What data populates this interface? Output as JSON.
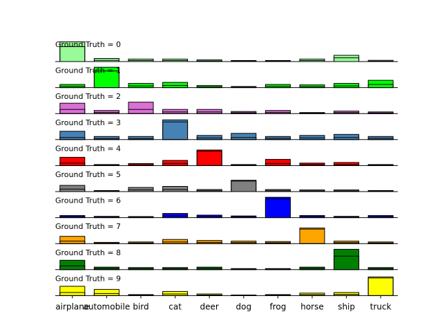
{
  "chart_data": {
    "type": "bar",
    "layout": "stacked-rows",
    "categories": [
      "airplane",
      "automobile",
      "bird",
      "cat",
      "deer",
      "dog",
      "frog",
      "horse",
      "ship",
      "truck"
    ],
    "ylim": [
      0,
      1
    ],
    "grid": false,
    "rows": [
      {
        "label": "Ground Truth = 0",
        "color": "#98fb98",
        "values": [
          0.95,
          0.15,
          0.12,
          0.12,
          0.08,
          0.05,
          0.05,
          0.12,
          0.3,
          0.06
        ],
        "inner_values": [
          0.72,
          0.06,
          0.05,
          0.05,
          0.03,
          0.02,
          0.02,
          0.05,
          0.18,
          0.02
        ]
      },
      {
        "label": "Ground Truth = 1",
        "color": "#00ff00",
        "values": [
          0.15,
          0.98,
          0.2,
          0.25,
          0.1,
          0.05,
          0.15,
          0.13,
          0.2,
          0.35
        ],
        "inner_values": [
          0.06,
          0.8,
          0.08,
          0.1,
          0.04,
          0.02,
          0.06,
          0.05,
          0.08,
          0.15
        ]
      },
      {
        "label": "Ground Truth = 2",
        "color": "#da70d6",
        "values": [
          0.5,
          0.15,
          0.55,
          0.2,
          0.2,
          0.1,
          0.15,
          0.05,
          0.12,
          0.08
        ],
        "inner_values": [
          0.2,
          0.06,
          0.2,
          0.08,
          0.08,
          0.04,
          0.06,
          0.02,
          0.05,
          0.03
        ]
      },
      {
        "label": "Ground Truth = 3",
        "color": "#4682b4",
        "values": [
          0.4,
          0.15,
          0.15,
          0.95,
          0.2,
          0.3,
          0.15,
          0.2,
          0.25,
          0.15
        ],
        "inner_values": [
          0.1,
          0.05,
          0.05,
          0.85,
          0.08,
          0.1,
          0.06,
          0.08,
          0.1,
          0.06
        ]
      },
      {
        "label": "Ground Truth = 4",
        "color": "#ff0000",
        "values": [
          0.4,
          0.05,
          0.1,
          0.25,
          0.75,
          0.05,
          0.3,
          0.12,
          0.15,
          0.05
        ],
        "inner_values": [
          0.12,
          0.02,
          0.04,
          0.1,
          0.7,
          0.02,
          0.1,
          0.05,
          0.05,
          0.02
        ]
      },
      {
        "label": "Ground Truth = 5",
        "color": "#808080",
        "values": [
          0.3,
          0.05,
          0.2,
          0.25,
          0.1,
          0.55,
          0.1,
          0.08,
          0.08,
          0.05
        ],
        "inner_values": [
          0.12,
          0.02,
          0.08,
          0.1,
          0.04,
          0.5,
          0.04,
          0.03,
          0.03,
          0.02
        ]
      },
      {
        "label": "Ground Truth = 6",
        "color": "#0000ff",
        "values": [
          0.1,
          0.06,
          0.05,
          0.2,
          0.12,
          0.08,
          0.98,
          0.1,
          0.06,
          0.1
        ],
        "inner_values": [
          0.04,
          0.02,
          0.02,
          0.08,
          0.05,
          0.03,
          0.9,
          0.04,
          0.02,
          0.04
        ]
      },
      {
        "label": "Ground Truth = 7",
        "color": "#ffa500",
        "values": [
          0.35,
          0.06,
          0.08,
          0.2,
          0.15,
          0.12,
          0.1,
          0.75,
          0.12,
          0.08
        ],
        "inner_values": [
          0.12,
          0.02,
          0.03,
          0.08,
          0.06,
          0.05,
          0.04,
          0.7,
          0.05,
          0.03
        ]
      },
      {
        "label": "Ground Truth = 8",
        "color": "#008000",
        "values": [
          0.45,
          0.12,
          0.1,
          0.1,
          0.12,
          0.05,
          0.05,
          0.12,
          0.98,
          0.1
        ],
        "inner_values": [
          0.18,
          0.05,
          0.04,
          0.04,
          0.05,
          0.02,
          0.02,
          0.05,
          0.65,
          0.04
        ]
      },
      {
        "label": "Ground Truth = 9",
        "color": "#ffff00",
        "values": [
          0.45,
          0.3,
          0.05,
          0.2,
          0.08,
          0.03,
          0.05,
          0.12,
          0.15,
          0.9
        ],
        "inner_values": [
          0.15,
          0.1,
          0.02,
          0.08,
          0.03,
          0.01,
          0.02,
          0.05,
          0.06,
          0.85
        ]
      }
    ]
  }
}
